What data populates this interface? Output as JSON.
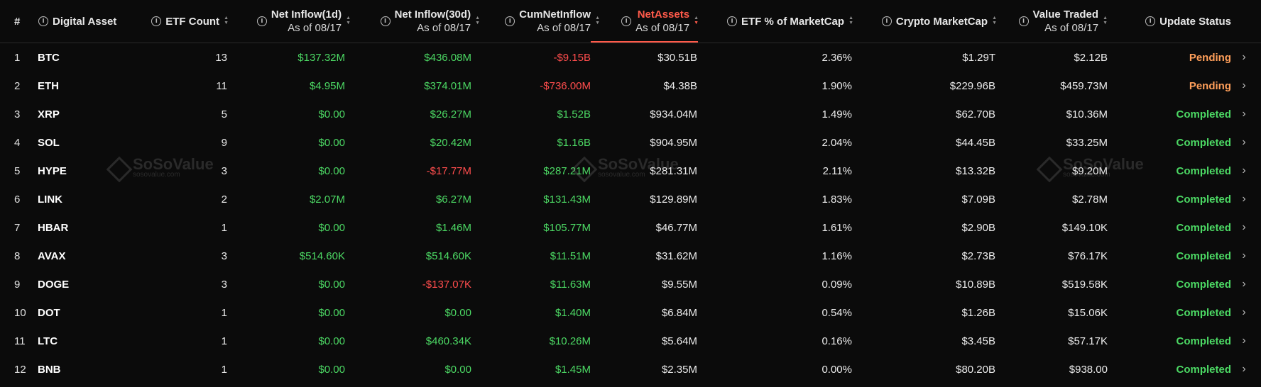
{
  "header": {
    "index_label": "#",
    "asset_label": "Digital Asset",
    "etf_count_label": "ETF Count",
    "net_inflow_1d_label": "Net Inflow(1d)",
    "net_inflow_1d_sub": "As of 08/17",
    "net_inflow_30d_label": "Net Inflow(30d)",
    "net_inflow_30d_sub": "As of 08/17",
    "cum_net_inflow_label": "CumNetInflow",
    "cum_net_inflow_sub": "As of 08/17",
    "net_assets_label": "NetAssets",
    "net_assets_sub": "As of 08/17",
    "etf_pct_label": "ETF % of MarketCap",
    "crypto_mcap_label": "Crypto MarketCap",
    "value_traded_label": "Value Traded",
    "value_traded_sub": "As of 08/17",
    "update_status_label": "Update Status"
  },
  "watermark": {
    "brand": "SoSoValue",
    "site": "sosovalue.com"
  },
  "colors": {
    "positive": "#4cd964",
    "negative": "#ff4d4d",
    "pending": "#ff9f5a",
    "active_sort": "#ff5a4a"
  },
  "rows": [
    {
      "idx": "1",
      "asset": "BTC",
      "count": "13",
      "in1d": "$137.32M",
      "in30d": "$436.08M",
      "cum": "-$9.15B",
      "net": "$30.51B",
      "pct": "2.36%",
      "mcap": "$1.29T",
      "traded": "$2.12B",
      "status": "Pending"
    },
    {
      "idx": "2",
      "asset": "ETH",
      "count": "11",
      "in1d": "$4.95M",
      "in30d": "$374.01M",
      "cum": "-$736.00M",
      "net": "$4.38B",
      "pct": "1.90%",
      "mcap": "$229.96B",
      "traded": "$459.73M",
      "status": "Pending"
    },
    {
      "idx": "3",
      "asset": "XRP",
      "count": "5",
      "in1d": "$0.00",
      "in30d": "$26.27M",
      "cum": "$1.52B",
      "net": "$934.04M",
      "pct": "1.49%",
      "mcap": "$62.70B",
      "traded": "$10.36M",
      "status": "Completed"
    },
    {
      "idx": "4",
      "asset": "SOL",
      "count": "9",
      "in1d": "$0.00",
      "in30d": "$20.42M",
      "cum": "$1.16B",
      "net": "$904.95M",
      "pct": "2.04%",
      "mcap": "$44.45B",
      "traded": "$33.25M",
      "status": "Completed"
    },
    {
      "idx": "5",
      "asset": "HYPE",
      "count": "3",
      "in1d": "$0.00",
      "in30d": "-$17.77M",
      "cum": "$287.21M",
      "net": "$281.31M",
      "pct": "2.11%",
      "mcap": "$13.32B",
      "traded": "$9.20M",
      "status": "Completed"
    },
    {
      "idx": "6",
      "asset": "LINK",
      "count": "2",
      "in1d": "$2.07M",
      "in30d": "$6.27M",
      "cum": "$131.43M",
      "net": "$129.89M",
      "pct": "1.83%",
      "mcap": "$7.09B",
      "traded": "$2.78M",
      "status": "Completed"
    },
    {
      "idx": "7",
      "asset": "HBAR",
      "count": "1",
      "in1d": "$0.00",
      "in30d": "$1.46M",
      "cum": "$105.77M",
      "net": "$46.77M",
      "pct": "1.61%",
      "mcap": "$2.90B",
      "traded": "$149.10K",
      "status": "Completed"
    },
    {
      "idx": "8",
      "asset": "AVAX",
      "count": "3",
      "in1d": "$514.60K",
      "in30d": "$514.60K",
      "cum": "$11.51M",
      "net": "$31.62M",
      "pct": "1.16%",
      "mcap": "$2.73B",
      "traded": "$76.17K",
      "status": "Completed"
    },
    {
      "idx": "9",
      "asset": "DOGE",
      "count": "3",
      "in1d": "$0.00",
      "in30d": "-$137.07K",
      "cum": "$11.63M",
      "net": "$9.55M",
      "pct": "0.09%",
      "mcap": "$10.89B",
      "traded": "$519.58K",
      "status": "Completed"
    },
    {
      "idx": "10",
      "asset": "DOT",
      "count": "1",
      "in1d": "$0.00",
      "in30d": "$0.00",
      "cum": "$1.40M",
      "net": "$6.84M",
      "pct": "0.54%",
      "mcap": "$1.26B",
      "traded": "$15.06K",
      "status": "Completed"
    },
    {
      "idx": "11",
      "asset": "LTC",
      "count": "1",
      "in1d": "$0.00",
      "in30d": "$460.34K",
      "cum": "$10.26M",
      "net": "$5.64M",
      "pct": "0.16%",
      "mcap": "$3.45B",
      "traded": "$57.17K",
      "status": "Completed"
    },
    {
      "idx": "12",
      "asset": "BNB",
      "count": "1",
      "in1d": "$0.00",
      "in30d": "$0.00",
      "cum": "$1.45M",
      "net": "$2.35M",
      "pct": "0.00%",
      "mcap": "$80.20B",
      "traded": "$938.00",
      "status": "Completed"
    }
  ]
}
